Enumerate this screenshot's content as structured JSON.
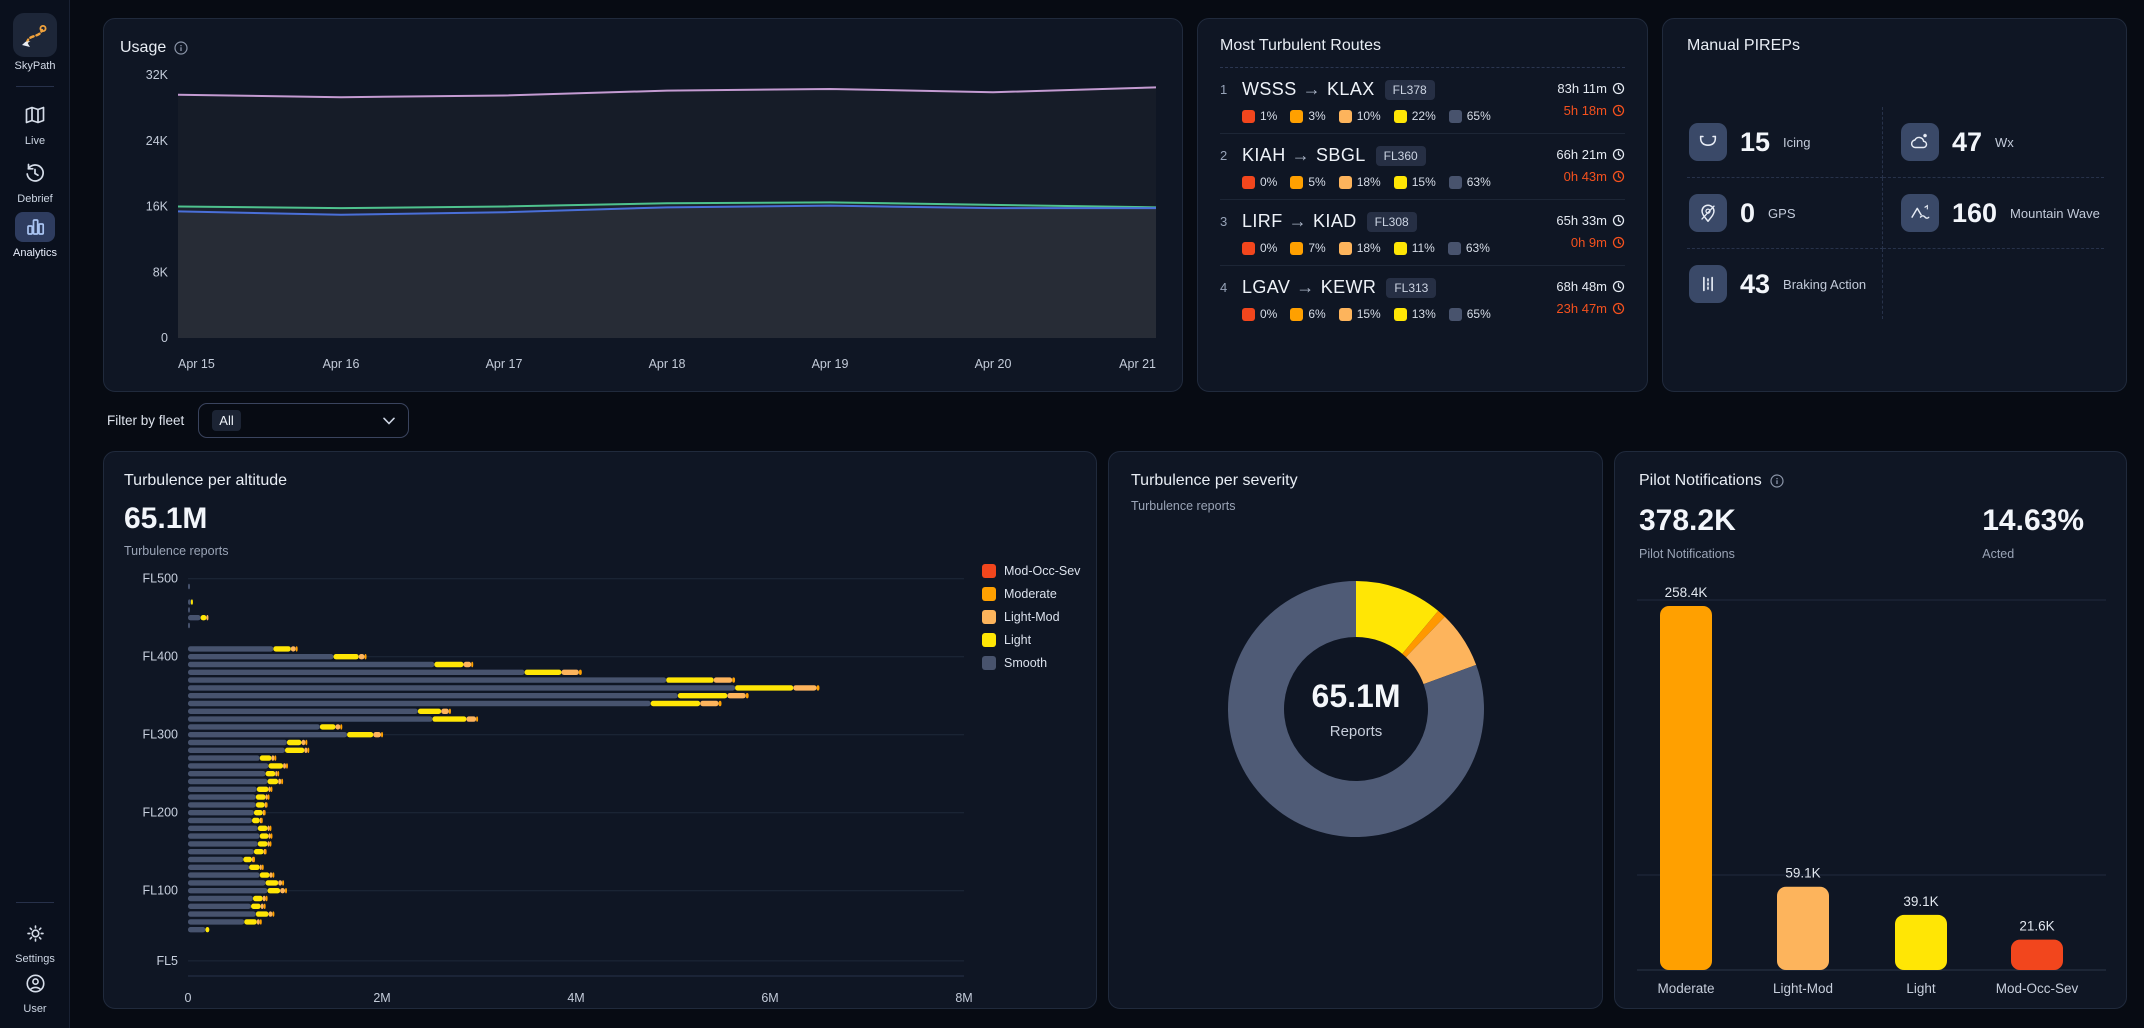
{
  "sidebar": {
    "logo_label": "SkyPath",
    "items": [
      {
        "label": "Live",
        "icon": "map-icon",
        "active": false
      },
      {
        "label": "Debrief",
        "icon": "history-icon",
        "active": false
      },
      {
        "label": "Analytics",
        "icon": "bar-chart-icon",
        "active": true
      }
    ],
    "bottom": [
      {
        "label": "Settings",
        "icon": "gear-icon"
      },
      {
        "label": "User",
        "icon": "user-icon"
      }
    ]
  },
  "filter": {
    "label": "Filter by fleet",
    "value": "All"
  },
  "routes_card": {
    "title": "Most Turbulent Routes",
    "arrow_glyph": "→",
    "severity_palette": [
      "#f2461d",
      "#ffa000",
      "#fdb45c",
      "#ffe605",
      "#48536d"
    ],
    "routes": [
      {
        "index": "1",
        "origin": "WSSS",
        "dest": "KLAX",
        "flight_level": "FL378",
        "percents": [
          1,
          3,
          10,
          22,
          65
        ],
        "flight_time": "83h 11m",
        "turbulence_time": "5h 18m"
      },
      {
        "index": "2",
        "origin": "KIAH",
        "dest": "SBGL",
        "flight_level": "FL360",
        "percents": [
          0,
          5,
          18,
          15,
          63
        ],
        "flight_time": "66h 21m",
        "turbulence_time": "0h 43m"
      },
      {
        "index": "3",
        "origin": "LIRF",
        "dest": "KIAD",
        "flight_level": "FL308",
        "percents": [
          0,
          7,
          18,
          11,
          63
        ],
        "flight_time": "65h 33m",
        "turbulence_time": "0h 9m"
      },
      {
        "index": "4",
        "origin": "LGAV",
        "dest": "KEWR",
        "flight_level": "FL313",
        "percents": [
          0,
          6,
          15,
          13,
          65
        ],
        "flight_time": "68h 48m",
        "turbulence_time": "23h 47m"
      }
    ]
  },
  "pireps_card": {
    "title": "Manual PIREPs",
    "items": [
      {
        "value": "15",
        "label": "Icing",
        "icon": "icing-icon"
      },
      {
        "value": "47",
        "label": "Wx",
        "icon": "weather-icon"
      },
      {
        "value": "0",
        "label": "GPS",
        "icon": "gps-icon"
      },
      {
        "value": "160",
        "label": "Mountain Wave",
        "icon": "mountain-wave-icon"
      },
      {
        "value": "43",
        "label": "Braking Action",
        "icon": "braking-action-icon"
      }
    ]
  },
  "chart_data": [
    {
      "id": "usage",
      "type": "line",
      "title": "Usage",
      "x": [
        "Apr 15",
        "Apr 16",
        "Apr 17",
        "Apr 18",
        "Apr 19",
        "Apr 20",
        "Apr 21"
      ],
      "y_ticks": [
        "0",
        "8K",
        "16K",
        "24K",
        "32K"
      ],
      "y_tick_vals": [
        0,
        8000,
        16000,
        24000,
        32000
      ],
      "ylim": [
        0,
        34500
      ],
      "grid": false,
      "legend_position": "none",
      "series": [
        {
          "name": "sessions-purple",
          "color": "#c49bd2",
          "fill": "#161c28",
          "values": [
            29600,
            29300,
            29500,
            30100,
            30300,
            29900,
            30500
          ]
        },
        {
          "name": "reports-green",
          "color": "#4ec28e",
          "fill": "#1d232f",
          "values": [
            16000,
            15800,
            16000,
            16400,
            16500,
            16200,
            15900
          ]
        },
        {
          "name": "flights-blue",
          "color": "#4a6fd8",
          "fill": "#272c36",
          "values": [
            15400,
            15000,
            15300,
            15900,
            16100,
            15800,
            15800
          ]
        }
      ]
    },
    {
      "id": "altitude",
      "type": "bar-horizontal-stacked",
      "title": "Turbulence per altitude",
      "total": "65.1M",
      "subtitle": "Turbulence reports",
      "unit": "M reports",
      "xlim": [
        0,
        8
      ],
      "x_ticks": [
        "0",
        "2M",
        "4M",
        "6M",
        "8M"
      ],
      "x_tick_vals": [
        0,
        2,
        4,
        6,
        8
      ],
      "gridlines": [
        {
          "label": "FL500",
          "row": -1
        },
        {
          "label": "FL400",
          "row": 9
        },
        {
          "label": "FL300",
          "row": 19
        },
        {
          "label": "FL200",
          "row": 29
        },
        {
          "label": "FL100",
          "row": 39
        },
        {
          "label": "FL5",
          "row": 48
        }
      ],
      "segment_order": [
        "Smooth",
        "Light",
        "Light-Mod",
        "Moderate"
      ],
      "segment_colors": [
        "#47536e",
        "#ffe605",
        "#fdb45c",
        "#ffa000"
      ],
      "legend": [
        {
          "label": "Mod-Occ-Sev",
          "color": "#f2461d"
        },
        {
          "label": "Moderate",
          "color": "#ffa000"
        },
        {
          "label": "Light-Mod",
          "color": "#fdb45c"
        },
        {
          "label": "Light",
          "color": "#ffe605"
        },
        {
          "label": "Smooth",
          "color": "#48536d"
        }
      ],
      "rows": [
        [
          0.01,
          0,
          0,
          0
        ],
        [
          0,
          0,
          0,
          0
        ],
        [
          0.03,
          0.015,
          0,
          0
        ],
        [
          0.005,
          0,
          0,
          0
        ],
        [
          0.13,
          0.06,
          0.02,
          0
        ],
        [
          0.005,
          0,
          0,
          0
        ],
        [
          0,
          0,
          0,
          0
        ],
        [
          0,
          0,
          0,
          0
        ],
        [
          0.88,
          0.18,
          0.05,
          0.01
        ],
        [
          1.5,
          0.26,
          0.06,
          0.01
        ],
        [
          2.54,
          0.3,
          0.08,
          0.01
        ],
        [
          3.47,
          0.38,
          0.18,
          0.03
        ],
        [
          4.93,
          0.49,
          0.19,
          0.03
        ],
        [
          5.64,
          0.6,
          0.24,
          0.03
        ],
        [
          5.05,
          0.51,
          0.19,
          0.03
        ],
        [
          4.77,
          0.51,
          0.19,
          0.03
        ],
        [
          2.37,
          0.24,
          0.08,
          0.02
        ],
        [
          2.52,
          0.35,
          0.1,
          0.02
        ],
        [
          1.36,
          0.16,
          0.05,
          0.02
        ],
        [
          1.64,
          0.27,
          0.08,
          0.02
        ],
        [
          1.02,
          0.15,
          0.04,
          0.01
        ],
        [
          1.0,
          0.2,
          0.03,
          0.01
        ],
        [
          0.74,
          0.12,
          0.03,
          0.01
        ],
        [
          0.83,
          0.15,
          0.03,
          0.01
        ],
        [
          0.8,
          0.1,
          0.02,
          0.01
        ],
        [
          0.82,
          0.11,
          0.03,
          0.01
        ],
        [
          0.71,
          0.12,
          0.02,
          0.01
        ],
        [
          0.7,
          0.1,
          0.02,
          0.01
        ],
        [
          0.7,
          0.09,
          0.01,
          0.01
        ],
        [
          0.68,
          0.09,
          0.01,
          0.01
        ],
        [
          0.66,
          0.08,
          0.01,
          0.01
        ],
        [
          0.72,
          0.1,
          0.02,
          0.01
        ],
        [
          0.74,
          0.09,
          0.02,
          0.02
        ],
        [
          0.72,
          0.1,
          0.02,
          0.01
        ],
        [
          0.68,
          0.1,
          0.01,
          0.01
        ],
        [
          0.57,
          0.09,
          0.01,
          0.01
        ],
        [
          0.63,
          0.11,
          0.02,
          0.01
        ],
        [
          0.74,
          0.1,
          0.03,
          0.01
        ],
        [
          0.8,
          0.13,
          0.04,
          0.01
        ],
        [
          0.82,
          0.13,
          0.05,
          0.01
        ],
        [
          0.67,
          0.1,
          0.03,
          0.01
        ],
        [
          0.65,
          0.1,
          0.03,
          0.01
        ],
        [
          0.7,
          0.13,
          0.04,
          0.01
        ],
        [
          0.58,
          0.13,
          0.03,
          0.01
        ],
        [
          0.18,
          0.04,
          0,
          0
        ]
      ]
    },
    {
      "id": "severity",
      "type": "pie",
      "title": "Turbulence per severity",
      "subtitle": "Turbulence reports",
      "center_value": "65.1M",
      "center_label": "Reports",
      "slices": [
        {
          "label": "Light",
          "color": "#ffe605",
          "fraction": 0.111
        },
        {
          "label": "Moderate",
          "color": "#ff9800",
          "fraction": 0.011
        },
        {
          "label": "Light-Mod",
          "color": "#fdb45c",
          "fraction": 0.072
        },
        {
          "label": "Smooth",
          "color": "#4f5b76",
          "fraction": 0.806
        }
      ]
    },
    {
      "id": "notifications",
      "type": "bar",
      "title": "Pilot Notifications",
      "total": "378.2K",
      "total_label": "Pilot Notifications",
      "acted": "14.63%",
      "acted_label": "Acted",
      "categories": [
        "Moderate",
        "Light-Mod",
        "Light",
        "Mod-Occ-Sev"
      ],
      "values": [
        258400,
        59100,
        39100,
        21600
      ],
      "value_labels": [
        "258.4K",
        "59.1K",
        "39.1K",
        "21.6K"
      ],
      "colors": [
        "#ffa000",
        "#fdb45c",
        "#ffe605",
        "#f2461d"
      ],
      "ylim": [
        0,
        272000
      ]
    }
  ]
}
